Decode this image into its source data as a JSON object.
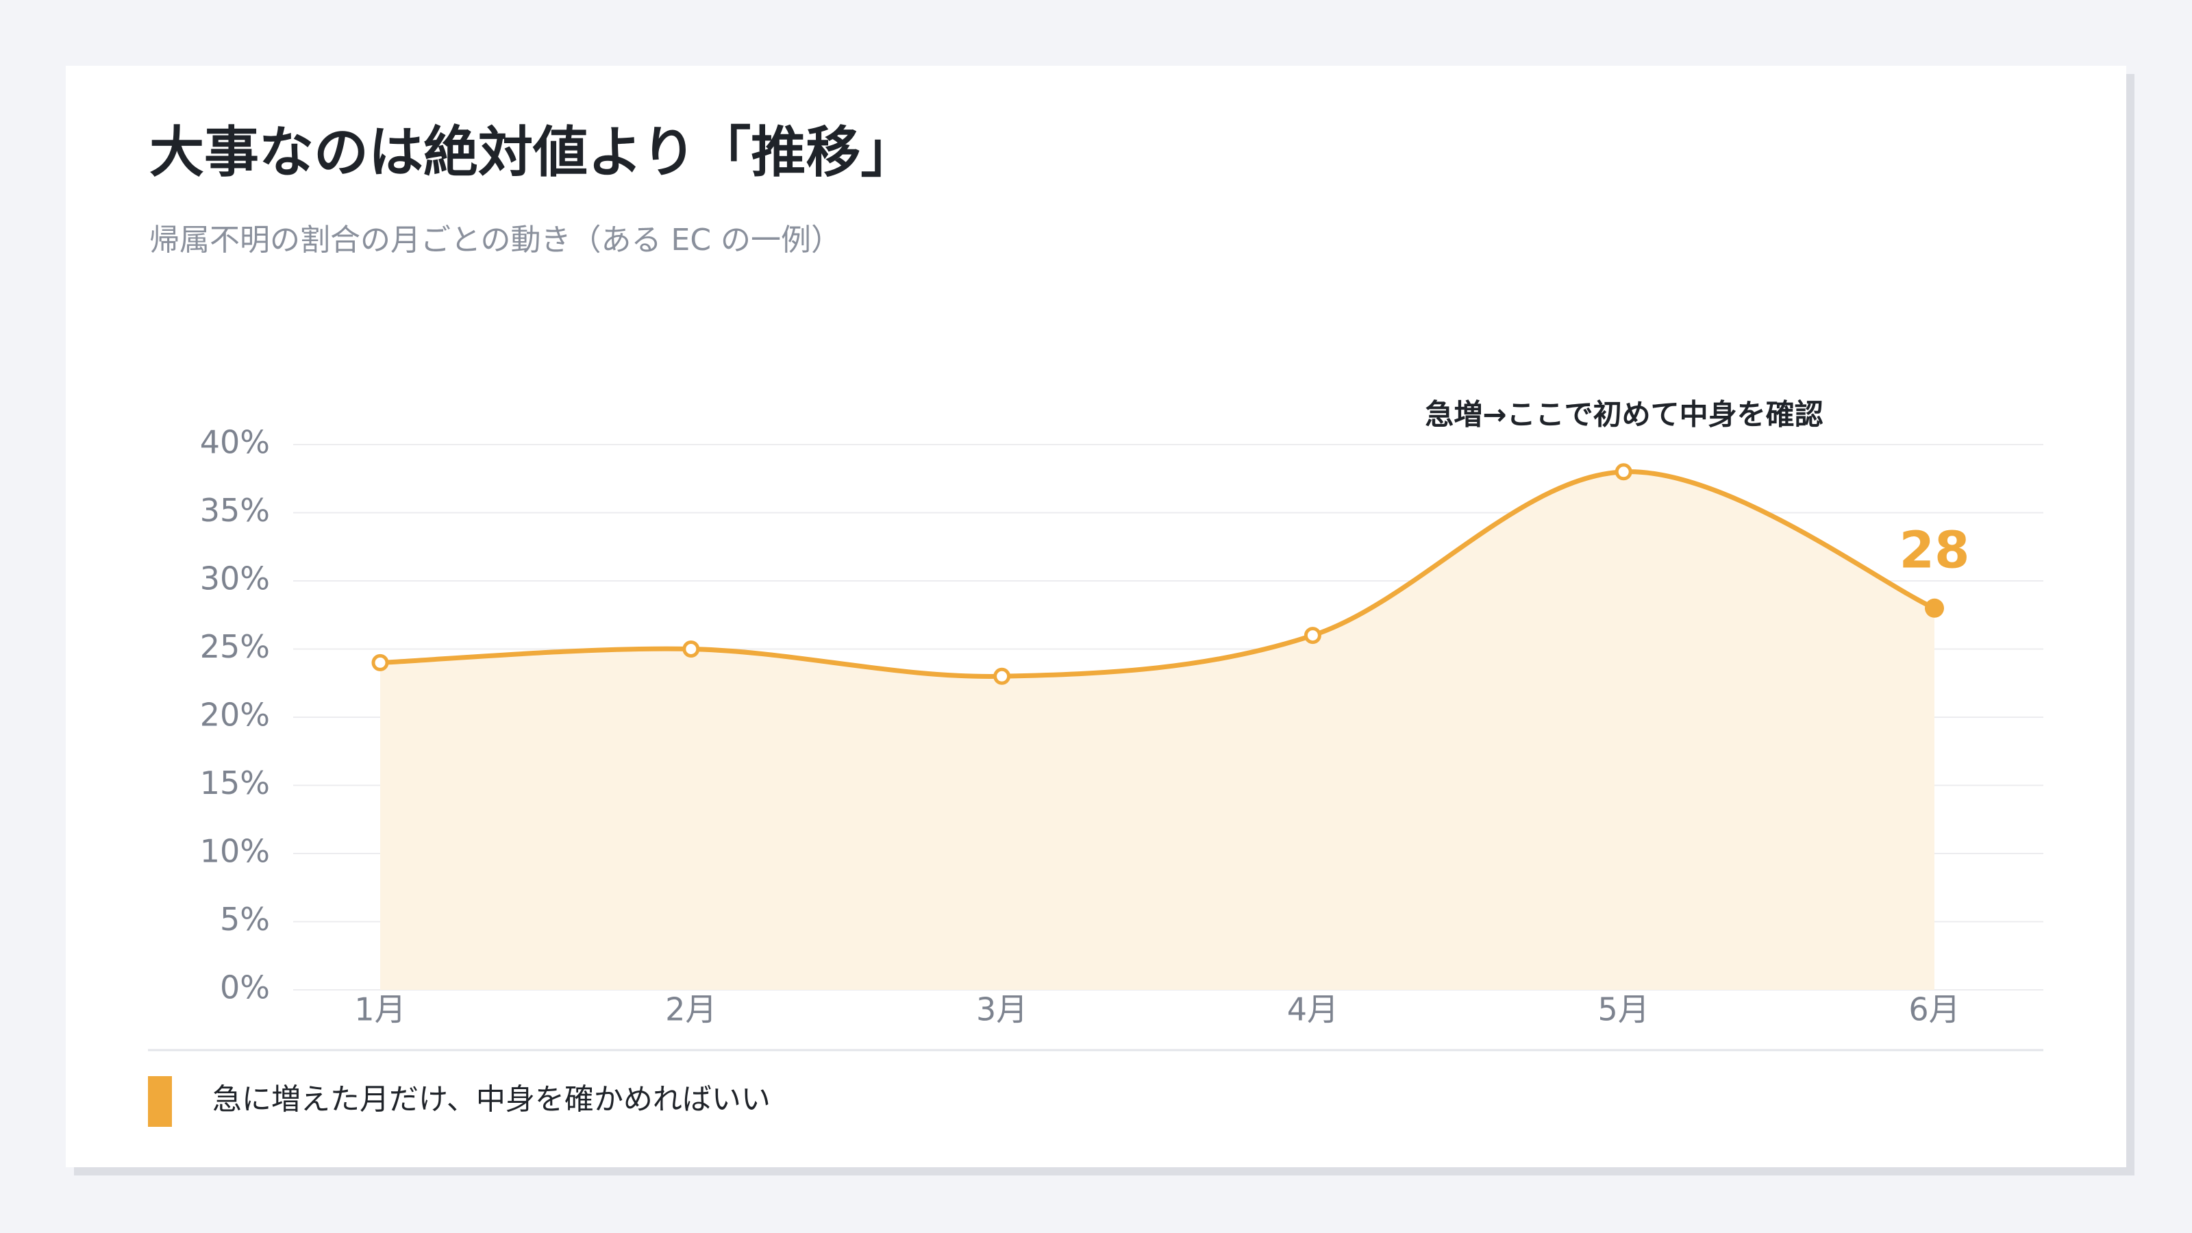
{
  "chart_data": {
    "type": "line",
    "title": "大事なのは絶対値より「推移」",
    "subtitle": "帰属不明の割合の月ごとの動き（ある EC の一例）",
    "categories": [
      "1月",
      "2月",
      "3月",
      "4月",
      "5月",
      "6月"
    ],
    "values": [
      24,
      25,
      23,
      26,
      38,
      28
    ],
    "color": "#f0a93b",
    "ylim": [
      0,
      40
    ],
    "yticks": [
      {
        "value": 0,
        "label": "0%"
      },
      {
        "value": 5,
        "label": "5%"
      },
      {
        "value": 10,
        "label": "10%"
      },
      {
        "value": 15,
        "label": "15%"
      },
      {
        "value": 20,
        "label": "20%"
      },
      {
        "value": 25,
        "label": "25%"
      },
      {
        "value": 30,
        "label": "30%"
      },
      {
        "value": 35,
        "label": "35%"
      },
      {
        "value": 40,
        "label": "40%"
      }
    ],
    "grid": true,
    "annotation": "急増→ここで初めて中身を確認",
    "note": "急に増えた月だけ、中身を確かめればいい"
  }
}
